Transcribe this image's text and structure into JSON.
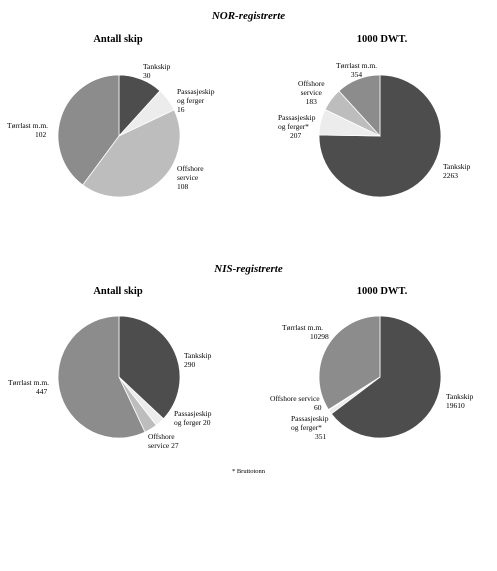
{
  "sections": [
    {
      "title": "NOR-registrerte",
      "charts": [
        {
          "title": "Antall skip",
          "slices": [
            {
              "label": "Tankskip",
              "value": "30",
              "color": "#4d4d4d"
            },
            {
              "label": "Passasjeskip\nog ferger",
              "value": "16",
              "color": "#ececec"
            },
            {
              "label": "Offshore\nservice",
              "value": "108",
              "color": "#bdbdbd"
            },
            {
              "label": "Tørrlast m.m.",
              "value": "102",
              "color": "#8c8c8c"
            }
          ]
        },
        {
          "title": "1000 DWT.",
          "slices": [
            {
              "label": "Tankskip",
              "value": "2263",
              "color": "#4d4d4d"
            },
            {
              "label": "Passasjeskip\nog ferger*",
              "value": "207",
              "color": "#ececec"
            },
            {
              "label": "Offshore\nservice",
              "value": "183",
              "color": "#bdbdbd"
            },
            {
              "label": "Tørrlast m.m.",
              "value": "354",
              "color": "#8c8c8c"
            }
          ]
        }
      ]
    },
    {
      "title": "NIS-registrerte",
      "charts": [
        {
          "title": "Antall skip",
          "slices": [
            {
              "label": "Tankskip",
              "value": "290",
              "color": "#4d4d4d"
            },
            {
              "label": "Passasjeskip\nog ferger",
              "value": "20",
              "color": "#ececec"
            },
            {
              "label": "Offshore\nservice",
              "value": "27",
              "color": "#bdbdbd"
            },
            {
              "label": "Tørrlast m.m.",
              "value": "447",
              "color": "#8c8c8c"
            }
          ]
        },
        {
          "title": "1000 DWT.",
          "slices": [
            {
              "label": "Tankskip",
              "value": "19610",
              "color": "#4d4d4d"
            },
            {
              "label": "Passasjeskip\nog ferger*",
              "value": "351",
              "color": "#ececec"
            },
            {
              "label": "Offshore service",
              "value": "60",
              "color": "#bdbdbd"
            },
            {
              "label": "Tørrlast m.m.",
              "value": "10298",
              "color": "#8c8c8c"
            }
          ]
        }
      ]
    }
  ],
  "footnote": "* Bruttotonn",
  "chart_data": [
    {
      "type": "pie",
      "title": "Antall skip",
      "group": "NOR-registrerte",
      "categories": [
        "Tankskip",
        "Passasjeskip og ferger",
        "Offshore service",
        "Tørrlast m.m."
      ],
      "values": [
        30,
        16,
        108,
        102
      ]
    },
    {
      "type": "pie",
      "title": "1000 DWT.",
      "group": "NOR-registrerte",
      "categories": [
        "Tankskip",
        "Passasjeskip og ferger*",
        "Offshore service",
        "Tørrlast m.m."
      ],
      "values": [
        2263,
        207,
        183,
        354
      ]
    },
    {
      "type": "pie",
      "title": "Antall skip",
      "group": "NIS-registrerte",
      "categories": [
        "Tankskip",
        "Passasjeskip og ferger",
        "Offshore service",
        "Tørrlast m.m."
      ],
      "values": [
        290,
        20,
        27,
        447
      ]
    },
    {
      "type": "pie",
      "title": "1000 DWT.",
      "group": "NIS-registrerte",
      "categories": [
        "Tankskip",
        "Passasjeskip og ferger*",
        "Offshore service",
        "Tørrlast m.m."
      ],
      "values": [
        19610,
        351,
        60,
        10298
      ]
    }
  ]
}
